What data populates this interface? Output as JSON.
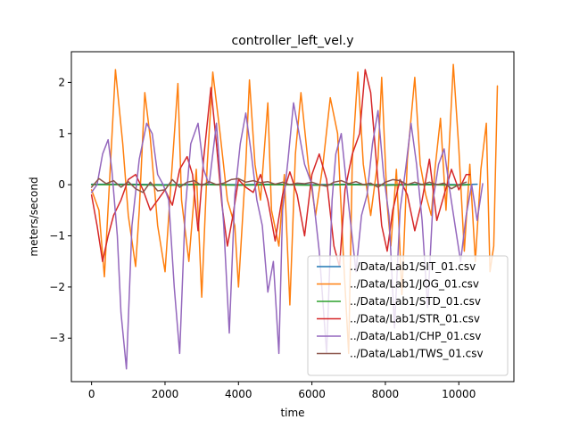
{
  "chart_data": {
    "type": "line",
    "title": "controller_left_vel.y",
    "xlabel": "time",
    "ylabel": "meters/second",
    "xlim": [
      -550,
      11500
    ],
    "ylim": [
      -3.85,
      2.6
    ],
    "xticks": [
      0,
      2000,
      4000,
      6000,
      8000,
      10000
    ],
    "yticks": [
      -3,
      -2,
      -1,
      0,
      1,
      2
    ],
    "grid": false,
    "legend_position": "lower-right",
    "series": [
      {
        "name": "../Data/Lab1/SIT_01.csv",
        "color": "#1f77b4",
        "x": [
          0,
          1000,
          2000,
          3000,
          4000,
          5000,
          6000,
          7000,
          8000,
          9000,
          10000,
          10500
        ],
        "y": [
          0.01,
          0.01,
          0.0,
          0.01,
          0.0,
          0.01,
          0.0,
          0.01,
          0.0,
          0.01,
          0.0,
          0.01
        ]
      },
      {
        "name": "../Data/Lab1/JOG_01.csv",
        "color": "#ff7f0e",
        "x": [
          0,
          200,
          350,
          500,
          650,
          850,
          1000,
          1200,
          1300,
          1450,
          1600,
          1800,
          2000,
          2150,
          2350,
          2450,
          2650,
          2850,
          3000,
          3150,
          3300,
          3500,
          3700,
          3900,
          4000,
          4200,
          4300,
          4450,
          4600,
          4800,
          4900,
          5100,
          5250,
          5400,
          5550,
          5700,
          5900,
          6100,
          6300,
          6500,
          6700,
          6850,
          7000,
          7100,
          7250,
          7400,
          7600,
          7800,
          7900,
          8050,
          8150,
          8300,
          8450,
          8600,
          8800,
          8950,
          9100,
          9250,
          9350,
          9500,
          9650,
          9850,
          10000,
          10150,
          10300,
          10450,
          10600,
          10750,
          10850,
          10950,
          11050
        ],
        "y": [
          -0.1,
          -0.5,
          -1.8,
          0.2,
          2.25,
          0.8,
          -0.6,
          -1.6,
          -0.5,
          1.8,
          0.9,
          -0.8,
          -1.7,
          -0.1,
          1.98,
          -0.3,
          -1.5,
          0.3,
          -2.2,
          0.4,
          2.2,
          1.0,
          -0.3,
          -0.8,
          -2.0,
          0.4,
          2.05,
          0.4,
          -0.3,
          1.6,
          -0.5,
          -1.2,
          0.2,
          -2.35,
          0.6,
          1.8,
          0.4,
          -0.6,
          0.4,
          1.7,
          1.0,
          -1.3,
          -3.3,
          0.5,
          2.2,
          0.4,
          -0.6,
          0.5,
          2.1,
          -0.4,
          -1.2,
          0.3,
          -2.15,
          0.5,
          2.1,
          0.4,
          -0.2,
          -0.6,
          0.3,
          1.3,
          -0.5,
          2.35,
          0.7,
          -1.3,
          0.4,
          -1.5,
          0.3,
          1.2,
          -1.7,
          -1.2,
          1.93
        ]
      },
      {
        "name": "../Data/Lab1/STD_01.csv",
        "color": "#2ca02c",
        "x": [
          0,
          1000,
          2000,
          3000,
          4000,
          5000,
          6000,
          7000,
          8000,
          9000,
          10000,
          10300
        ],
        "y": [
          0.0,
          0.0,
          -0.01,
          0.0,
          -0.01,
          0.0,
          -0.01,
          0.0,
          -0.01,
          0.0,
          -0.01,
          0.0
        ]
      },
      {
        "name": "../Data/Lab1/STR_01.csv",
        "color": "#d62728",
        "x": [
          0,
          150,
          300,
          450,
          600,
          800,
          1000,
          1200,
          1400,
          1600,
          1800,
          2000,
          2200,
          2400,
          2600,
          2750,
          2900,
          3050,
          3250,
          3400,
          3550,
          3700,
          3850,
          4000,
          4200,
          4400,
          4600,
          4800,
          5000,
          5200,
          5400,
          5600,
          5800,
          6000,
          6200,
          6400,
          6600,
          6750,
          6900,
          7100,
          7300,
          7450,
          7600,
          7750,
          7900,
          8050,
          8200,
          8400,
          8600,
          8800,
          9000,
          9200,
          9400,
          9600,
          9800,
          10000,
          10200,
          10300
        ],
        "y": [
          -0.2,
          -0.8,
          -1.5,
          -1.0,
          -0.6,
          -0.3,
          0.1,
          0.2,
          -0.1,
          -0.5,
          -0.3,
          -0.1,
          -0.4,
          0.3,
          0.55,
          0.2,
          -0.9,
          0.5,
          1.9,
          0.8,
          -0.4,
          -1.2,
          -0.6,
          0.1,
          -0.05,
          -0.15,
          0.2,
          -0.3,
          -1.1,
          -0.2,
          0.25,
          -0.2,
          -1.0,
          0.2,
          0.6,
          0.1,
          -1.2,
          -1.6,
          -0.1,
          0.6,
          1.0,
          2.25,
          1.8,
          0.5,
          -0.8,
          -1.3,
          -0.5,
          0.1,
          -0.2,
          -0.9,
          -0.3,
          0.5,
          -0.7,
          -0.2,
          0.3,
          -0.1,
          0.2,
          0.2
        ]
      },
      {
        "name": "../Data/Lab1/CHP_01.csv",
        "color": "#9467bd",
        "x": [
          0,
          150,
          300,
          450,
          550,
          700,
          800,
          950,
          1100,
          1300,
          1500,
          1650,
          1800,
          1950,
          2100,
          2250,
          2400,
          2550,
          2700,
          2900,
          3050,
          3200,
          3400,
          3600,
          3750,
          3900,
          4050,
          4200,
          4350,
          4500,
          4650,
          4800,
          4950,
          5100,
          5200,
          5350,
          5500,
          5650,
          5800,
          6000,
          6200,
          6400,
          6550,
          6650,
          6800,
          7000,
          7200,
          7350,
          7500,
          7650,
          7800,
          7950,
          8100,
          8250,
          8400,
          8550,
          8700,
          8850,
          9000,
          9150,
          9300,
          9450,
          9600,
          9750,
          9900,
          10050,
          10200,
          10350,
          10500,
          10650
        ],
        "y": [
          -0.15,
          0.0,
          0.6,
          0.88,
          0.3,
          -1.0,
          -2.5,
          -3.6,
          -0.8,
          0.5,
          1.2,
          1.0,
          0.2,
          0.0,
          -0.3,
          -2.0,
          -3.3,
          -0.5,
          0.8,
          1.2,
          0.3,
          0.0,
          1.2,
          -0.8,
          -2.9,
          -0.2,
          0.8,
          1.4,
          0.6,
          -0.3,
          -0.8,
          -2.1,
          -1.5,
          -3.3,
          -0.5,
          0.5,
          1.6,
          1.0,
          0.4,
          0.0,
          -1.3,
          -3.3,
          -0.3,
          0.6,
          1.0,
          -0.4,
          -1.7,
          -0.6,
          -0.2,
          0.8,
          1.45,
          0.2,
          -0.6,
          -2.8,
          -0.5,
          0.3,
          1.2,
          0.4,
          -0.7,
          -2.4,
          -0.3,
          0.4,
          0.7,
          -0.1,
          -0.8,
          -1.5,
          -0.6,
          0.0,
          -0.7,
          0.02
        ]
      },
      {
        "name": "../Data/Lab1/TWS_01.csv",
        "color": "#8c564b",
        "x": [
          0,
          200,
          400,
          600,
          800,
          1000,
          1200,
          1400,
          1600,
          1800,
          2000,
          2200,
          2400,
          2600,
          2800,
          3000,
          3200,
          3400,
          3600,
          3800,
          4000,
          4200,
          4400,
          4600,
          4800,
          5000,
          5200,
          5400,
          5600,
          5800,
          6000,
          6200,
          6400,
          6600,
          6800,
          7000,
          7200,
          7400,
          7600,
          7800,
          8000,
          8200,
          8400,
          8600,
          8800,
          9000,
          9200,
          9400,
          9600,
          9800,
          10000,
          10200
        ],
        "y": [
          -0.05,
          0.12,
          0.02,
          0.08,
          -0.05,
          0.06,
          -0.08,
          -0.15,
          0.05,
          -0.12,
          -0.1,
          0.1,
          -0.05,
          0.05,
          0.08,
          -0.02,
          0.06,
          0.0,
          0.03,
          0.1,
          0.12,
          0.05,
          0.08,
          0.04,
          0.06,
          0.01,
          0.05,
          0.0,
          0.03,
          0.02,
          0.05,
          0.0,
          -0.03,
          0.05,
          0.08,
          0.02,
          0.06,
          0.0,
          0.03,
          -0.05,
          0.05,
          0.1,
          0.08,
          0.0,
          0.05,
          0.0,
          0.05,
          0.0,
          0.03,
          -0.08,
          0.0,
          0.05
        ]
      }
    ]
  }
}
